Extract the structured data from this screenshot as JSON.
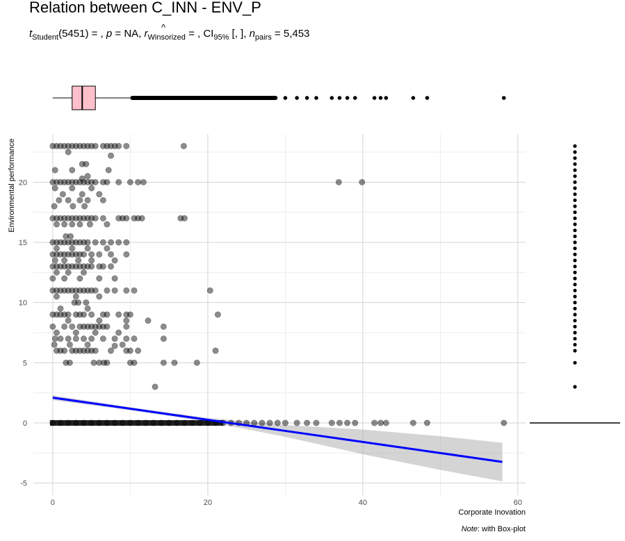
{
  "chart_data": {
    "type": "scatter",
    "title": "Relation between C_INN - ENV_P",
    "subtitle": {
      "t_label": "t",
      "t_sub": "Student",
      "t_df": "(5451) = , ",
      "p_label": "p",
      "p_value": " = NA, ",
      "r_label": "r",
      "r_hat": "^",
      "r_sub": "Winsorized",
      "r_value": " = , CI",
      "ci_sub": "95%",
      "ci_value": " [, ], ",
      "n_label": "n",
      "n_sub": "pairs",
      "n_value": " = 5,453"
    },
    "xlabel": "Corporate Inovation",
    "ylabel": "Environmental performance",
    "caption_note": "Note",
    "caption_text": ": with Box-plot",
    "xlim": [
      -2.5,
      61
    ],
    "ylim": [
      -6,
      24
    ],
    "xticks": [
      0,
      20,
      40,
      60
    ],
    "yticks": [
      -5,
      0,
      5,
      10,
      15,
      20
    ],
    "grid": true,
    "point_color": "#000000",
    "point_opacity": 0.45,
    "marginal_boxplot": {
      "fill": "#ffc0cb",
      "q1": 2.5,
      "median": 3.8,
      "q3": 5.5,
      "whisker_low": 0,
      "whisker_high": 10,
      "outliers_dense_to": 29,
      "outliers": [
        30,
        31.5,
        32.8,
        34,
        36,
        37,
        38,
        39,
        41.5,
        42.3,
        43,
        46.5,
        48.3,
        58.2
      ]
    },
    "marginal_y_points": [
      23,
      22.5,
      22,
      21.5,
      21,
      20.5,
      20,
      19.5,
      19,
      18.5,
      18,
      17.5,
      17,
      16.5,
      16,
      15.5,
      15,
      14.5,
      14,
      13.5,
      13,
      12.5,
      12,
      11.5,
      11,
      10.5,
      10,
      9.5,
      9,
      8.5,
      8,
      7.5,
      7,
      6.5,
      6,
      5,
      3,
      0
    ],
    "smooth": {
      "color": "#0000ff",
      "x": [
        0,
        10,
        20,
        30,
        40,
        50,
        58
      ],
      "y": [
        2.1,
        1.18,
        0.26,
        -0.66,
        -1.58,
        -2.5,
        -3.24
      ],
      "ci_low": [
        1.9,
        1.05,
        0.1,
        -1.15,
        -2.6,
        -3.9,
        -4.85
      ],
      "ci_high": [
        2.3,
        1.3,
        0.42,
        -0.18,
        -0.55,
        -1.1,
        -1.65
      ]
    },
    "points": [
      [
        0,
        23
      ],
      [
        0.5,
        23
      ],
      [
        1,
        23
      ],
      [
        1.5,
        23
      ],
      [
        2,
        23
      ],
      [
        2.5,
        23
      ],
      [
        3,
        23
      ],
      [
        3.5,
        23
      ],
      [
        4,
        23
      ],
      [
        4.5,
        23
      ],
      [
        5,
        23
      ],
      [
        5.5,
        23
      ],
      [
        6.5,
        23
      ],
      [
        7,
        23
      ],
      [
        7.5,
        23
      ],
      [
        8,
        23
      ],
      [
        8.5,
        23
      ],
      [
        9.5,
        23
      ],
      [
        16.9,
        23
      ],
      [
        2,
        22.5
      ],
      [
        7.5,
        22.2
      ],
      [
        3.8,
        21.5
      ],
      [
        4.3,
        21.5
      ],
      [
        0.3,
        21
      ],
      [
        7.2,
        21
      ],
      [
        2.5,
        21
      ],
      [
        4.5,
        20.5
      ],
      [
        3.8,
        20.3
      ],
      [
        0,
        20
      ],
      [
        0.5,
        20
      ],
      [
        1,
        20
      ],
      [
        1.5,
        20
      ],
      [
        2,
        20
      ],
      [
        2.5,
        20
      ],
      [
        3,
        20
      ],
      [
        3.5,
        20
      ],
      [
        4,
        20
      ],
      [
        4.5,
        20
      ],
      [
        5,
        20
      ],
      [
        5.5,
        20
      ],
      [
        6.5,
        20
      ],
      [
        7,
        20
      ],
      [
        8.5,
        20
      ],
      [
        10,
        20
      ],
      [
        11,
        20
      ],
      [
        11.7,
        20
      ],
      [
        36.9,
        20
      ],
      [
        39.9,
        20
      ],
      [
        0.3,
        19.5
      ],
      [
        2.5,
        19.5
      ],
      [
        5,
        19.5
      ],
      [
        1.3,
        19
      ],
      [
        3.8,
        19
      ],
      [
        6,
        19
      ],
      [
        0.8,
        18.5
      ],
      [
        2,
        18.5
      ],
      [
        3.5,
        18.5
      ],
      [
        4.5,
        18.5
      ],
      [
        6.5,
        18.5
      ],
      [
        0.2,
        18
      ],
      [
        2.6,
        18
      ],
      [
        4.1,
        18
      ],
      [
        0,
        17
      ],
      [
        0.5,
        17
      ],
      [
        1,
        17
      ],
      [
        1.5,
        17
      ],
      [
        2,
        17
      ],
      [
        2.5,
        17
      ],
      [
        3,
        17
      ],
      [
        3.5,
        17
      ],
      [
        4,
        17
      ],
      [
        4.5,
        17
      ],
      [
        5,
        17
      ],
      [
        5.5,
        17
      ],
      [
        6.5,
        17
      ],
      [
        8.5,
        17
      ],
      [
        9,
        17
      ],
      [
        9.5,
        17
      ],
      [
        10.5,
        17
      ],
      [
        11,
        17
      ],
      [
        11.5,
        17
      ],
      [
        16.5,
        17
      ],
      [
        17,
        17
      ],
      [
        0.5,
        16.5
      ],
      [
        1.5,
        16.5
      ],
      [
        2.5,
        16.5
      ],
      [
        3.5,
        16.5
      ],
      [
        4.8,
        16.5
      ],
      [
        7,
        16.5
      ],
      [
        1.7,
        15.5
      ],
      [
        2.3,
        15.5
      ],
      [
        0,
        15
      ],
      [
        0.5,
        15
      ],
      [
        1,
        15
      ],
      [
        1.5,
        15
      ],
      [
        2,
        15
      ],
      [
        2.5,
        15
      ],
      [
        3,
        15
      ],
      [
        3.5,
        15
      ],
      [
        4,
        15
      ],
      [
        4.5,
        15
      ],
      [
        5.5,
        15
      ],
      [
        6.5,
        15
      ],
      [
        7.5,
        15
      ],
      [
        8.5,
        15
      ],
      [
        9.5,
        15
      ],
      [
        0.5,
        14.5
      ],
      [
        2.5,
        14.5
      ],
      [
        4.5,
        14.5
      ],
      [
        7,
        14.5
      ],
      [
        0,
        14
      ],
      [
        0.5,
        14
      ],
      [
        1,
        14
      ],
      [
        1.5,
        14
      ],
      [
        2,
        14
      ],
      [
        2.5,
        14
      ],
      [
        3,
        14
      ],
      [
        3.5,
        14
      ],
      [
        4,
        14
      ],
      [
        5,
        14
      ],
      [
        6,
        14
      ],
      [
        7.5,
        14
      ],
      [
        9.5,
        14
      ],
      [
        0.3,
        13.5
      ],
      [
        1.5,
        13.5
      ],
      [
        3.3,
        13.5
      ],
      [
        5,
        13.5
      ],
      [
        8,
        13.5
      ],
      [
        0,
        13
      ],
      [
        0.5,
        13
      ],
      [
        1,
        13
      ],
      [
        1.5,
        13
      ],
      [
        2,
        13
      ],
      [
        2.5,
        13
      ],
      [
        3,
        13
      ],
      [
        3.5,
        13
      ],
      [
        4,
        13
      ],
      [
        4.5,
        13
      ],
      [
        5,
        13
      ],
      [
        6,
        13
      ],
      [
        6.5,
        13
      ],
      [
        7.5,
        13
      ],
      [
        0.5,
        12.5
      ],
      [
        2,
        12.5
      ],
      [
        4,
        12.5
      ],
      [
        0,
        12
      ],
      [
        1.5,
        12
      ],
      [
        3.5,
        12
      ],
      [
        6,
        12
      ],
      [
        8,
        12
      ],
      [
        0,
        11
      ],
      [
        0.5,
        11
      ],
      [
        1,
        11
      ],
      [
        1.5,
        11
      ],
      [
        2,
        11
      ],
      [
        2.5,
        11
      ],
      [
        3,
        11
      ],
      [
        3.5,
        11
      ],
      [
        4,
        11
      ],
      [
        4.5,
        11
      ],
      [
        5,
        11
      ],
      [
        5.5,
        11
      ],
      [
        7,
        11
      ],
      [
        8,
        11
      ],
      [
        9.5,
        11
      ],
      [
        10.5,
        11
      ],
      [
        20.3,
        11
      ],
      [
        0.5,
        10.5
      ],
      [
        3,
        10.5
      ],
      [
        6,
        10.5
      ],
      [
        2.8,
        10
      ],
      [
        3.3,
        10
      ],
      [
        4.3,
        10
      ],
      [
        0,
        9
      ],
      [
        0.5,
        9
      ],
      [
        1,
        9
      ],
      [
        1.5,
        9
      ],
      [
        2,
        9
      ],
      [
        3,
        9
      ],
      [
        3.5,
        9
      ],
      [
        4,
        9
      ],
      [
        5,
        9
      ],
      [
        6.5,
        9
      ],
      [
        7,
        9
      ],
      [
        8.5,
        9
      ],
      [
        9.5,
        9
      ],
      [
        10,
        9
      ],
      [
        21.3,
        9
      ],
      [
        1,
        9.5
      ],
      [
        4.5,
        9.5
      ],
      [
        2,
        8.5
      ],
      [
        6,
        8.5
      ],
      [
        9.5,
        8.5
      ],
      [
        12.3,
        8.5
      ],
      [
        0,
        8
      ],
      [
        1.5,
        8
      ],
      [
        2.5,
        8
      ],
      [
        3.5,
        8
      ],
      [
        4,
        8
      ],
      [
        4.5,
        8
      ],
      [
        5,
        8
      ],
      [
        5.5,
        8
      ],
      [
        6,
        8
      ],
      [
        6.5,
        8
      ],
      [
        7,
        8
      ],
      [
        9.5,
        8
      ],
      [
        14.3,
        8
      ],
      [
        0.5,
        7.5
      ],
      [
        3,
        7.5
      ],
      [
        5.5,
        7.5
      ],
      [
        8.5,
        7.5
      ],
      [
        0.3,
        7
      ],
      [
        1,
        7
      ],
      [
        2,
        7
      ],
      [
        3,
        7
      ],
      [
        4,
        7
      ],
      [
        5,
        7
      ],
      [
        6.5,
        7
      ],
      [
        8,
        7
      ],
      [
        9.5,
        7
      ],
      [
        10.5,
        7
      ],
      [
        14.3,
        7
      ],
      [
        0.2,
        6.5
      ],
      [
        2.2,
        6.5
      ],
      [
        4.5,
        6.5
      ],
      [
        8,
        6.4
      ],
      [
        9,
        6.5
      ],
      [
        0.5,
        6
      ],
      [
        1,
        6
      ],
      [
        1.5,
        6
      ],
      [
        2.5,
        6
      ],
      [
        3,
        6
      ],
      [
        3.5,
        6
      ],
      [
        4,
        6
      ],
      [
        4.5,
        6
      ],
      [
        5,
        6
      ],
      [
        5.5,
        6
      ],
      [
        7.5,
        6
      ],
      [
        9.5,
        6
      ],
      [
        10,
        6
      ],
      [
        11,
        6
      ],
      [
        21,
        6
      ],
      [
        1.7,
        5
      ],
      [
        2.2,
        5
      ],
      [
        5.3,
        5
      ],
      [
        6,
        5
      ],
      [
        6.6,
        5
      ],
      [
        7,
        5
      ],
      [
        10,
        5
      ],
      [
        10.5,
        5
      ],
      [
        14.3,
        5
      ],
      [
        15.7,
        5
      ],
      [
        18.6,
        5
      ],
      [
        13.2,
        3
      ],
      [
        0,
        0
      ],
      [
        1,
        0
      ],
      [
        2,
        0
      ],
      [
        3,
        0
      ],
      [
        4,
        0
      ],
      [
        5,
        0
      ],
      [
        6,
        0
      ],
      [
        7,
        0
      ],
      [
        8,
        0
      ],
      [
        9,
        0
      ],
      [
        10,
        0
      ],
      [
        11,
        0
      ],
      [
        12,
        0
      ],
      [
        13,
        0
      ],
      [
        14,
        0
      ],
      [
        15,
        0
      ],
      [
        16,
        0
      ],
      [
        17,
        0
      ],
      [
        18,
        0
      ],
      [
        19,
        0
      ],
      [
        20,
        0
      ],
      [
        21,
        0
      ],
      [
        22,
        0
      ],
      [
        23,
        0
      ],
      [
        24,
        0
      ],
      [
        25,
        0
      ],
      [
        26,
        0
      ],
      [
        27,
        0
      ],
      [
        28,
        0
      ],
      [
        29,
        0
      ],
      [
        30,
        0
      ],
      [
        31.5,
        0
      ],
      [
        32.8,
        0
      ],
      [
        34,
        0
      ],
      [
        36,
        0
      ],
      [
        37,
        0
      ],
      [
        38,
        0
      ],
      [
        39,
        0
      ],
      [
        41.5,
        0
      ],
      [
        42.3,
        0
      ],
      [
        43,
        0
      ],
      [
        46.5,
        0
      ],
      [
        48.3,
        0
      ],
      [
        58.2,
        0
      ]
    ]
  }
}
